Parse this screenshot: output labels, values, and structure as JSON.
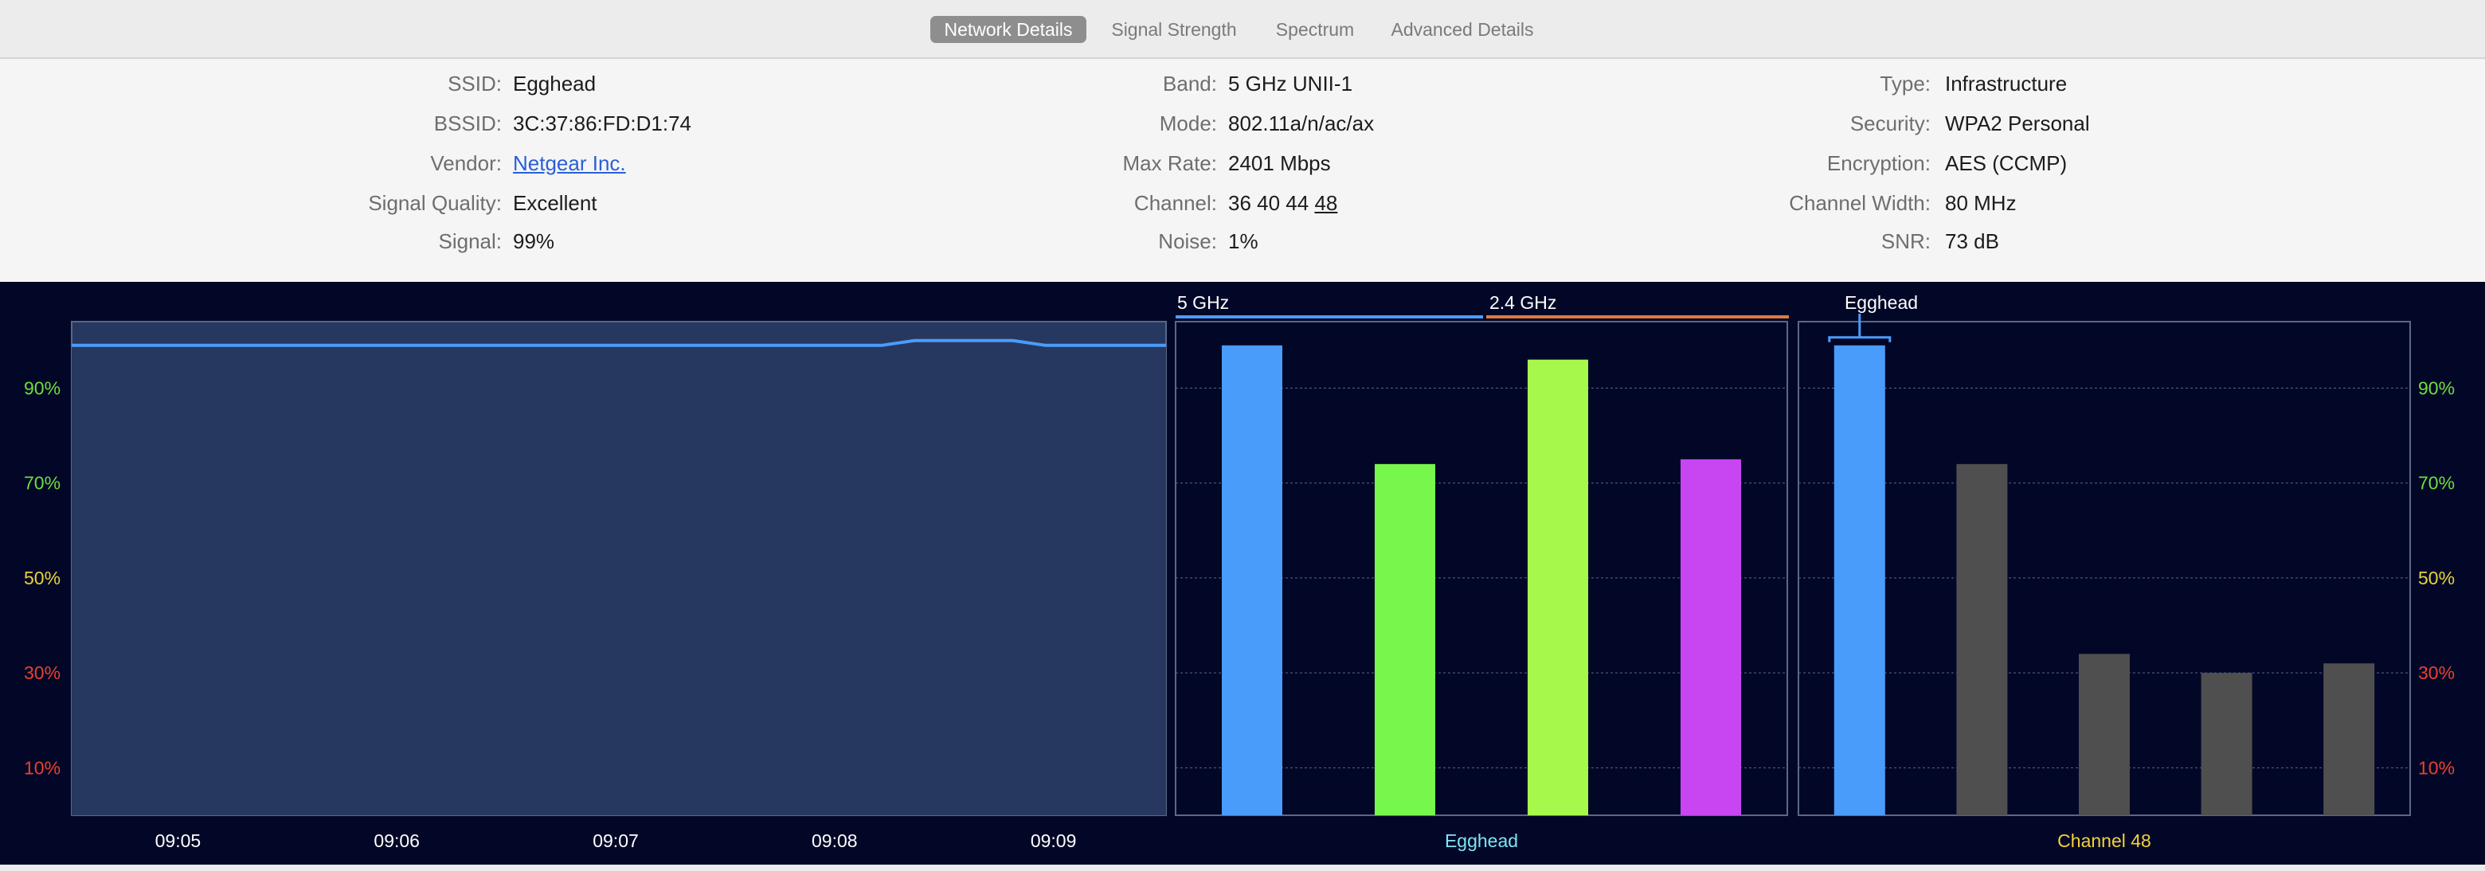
{
  "tabs": [
    {
      "label": "Network Details",
      "active": true
    },
    {
      "label": "Signal Strength",
      "active": false
    },
    {
      "label": "Spectrum",
      "active": false
    },
    {
      "label": "Advanced Details",
      "active": false
    }
  ],
  "details": {
    "col1": [
      {
        "label": "SSID:",
        "value": "Egghead"
      },
      {
        "label": "BSSID:",
        "value": "3C:37:86:FD:D1:74"
      },
      {
        "label": "Vendor:",
        "value": "Netgear Inc."
      },
      {
        "label": "Signal Quality:",
        "value": "Excellent"
      },
      {
        "label": "Signal:",
        "value": "99%"
      }
    ],
    "col2": [
      {
        "label": "Band:",
        "value": "5 GHz UNII-1"
      },
      {
        "label": "Mode:",
        "value": "802.11a/n/ac/ax"
      },
      {
        "label": "Max Rate:",
        "value": "2401 Mbps"
      },
      {
        "label": "Channel:",
        "value": "36 40 44 ",
        "value_underlined": "48"
      },
      {
        "label": "Noise:",
        "value": "1%"
      }
    ],
    "col3": [
      {
        "label": "Type:",
        "value": "Infrastructure"
      },
      {
        "label": "Security:",
        "value": "WPA2 Personal"
      },
      {
        "label": "Encryption:",
        "value": "AES (CCMP)"
      },
      {
        "label": "Channel Width:",
        "value": "80 MHz"
      },
      {
        "label": "SNR:",
        "value": "73 dB"
      }
    ]
  },
  "colors": {
    "background": "#030727",
    "blue": "#4a9cfa",
    "orange": "#e07a3c",
    "green": "#77f74c",
    "yellowgreen": "#a6f84a",
    "magenta": "#c746f2",
    "gray": "#4f4f4f",
    "tick_green": "#6fde3a",
    "tick_yellow": "#e6d43a",
    "tick_red": "#e8412f",
    "cyan": "#7de6f6",
    "yellow": "#f3d13c"
  },
  "chart_data": [
    {
      "type": "area",
      "y_ticks": [
        "90%",
        "70%",
        "50%",
        "30%",
        "10%"
      ],
      "y_tick_values": [
        90,
        70,
        50,
        30,
        10
      ],
      "ylim": [
        0,
        104
      ],
      "x_ticks": [
        "09:05",
        "09:06",
        "09:07",
        "09:08",
        "09:09"
      ],
      "x_tick_values": [
        0.5,
        1.5,
        2.5,
        3.5,
        4.5
      ],
      "xlim": [
        0,
        5
      ],
      "series": [
        {
          "x": [
            0,
            3.7,
            3.85,
            4.3,
            4.45,
            5
          ],
          "values": [
            99,
            99,
            100,
            100,
            99,
            99
          ]
        }
      ],
      "grid": true
    },
    {
      "type": "bar",
      "band_labels": [
        "5 GHz",
        "2.4 GHz"
      ],
      "values": [
        99,
        74,
        96,
        75
      ],
      "bar_colors": [
        "blue",
        "green",
        "yellowgreen",
        "magenta"
      ],
      "xlabel": "Egghead",
      "ylim": [
        0,
        104
      ],
      "grid": true
    },
    {
      "type": "bar",
      "highlight_label": "Egghead",
      "values": [
        99,
        74,
        34,
        30,
        32
      ],
      "bar_colors": [
        "blue",
        "gray",
        "gray",
        "gray",
        "gray"
      ],
      "xlabel": "Channel 48",
      "y_ticks": [
        "90%",
        "70%",
        "50%",
        "30%",
        "10%"
      ],
      "ylim": [
        0,
        104
      ],
      "grid": true
    }
  ]
}
